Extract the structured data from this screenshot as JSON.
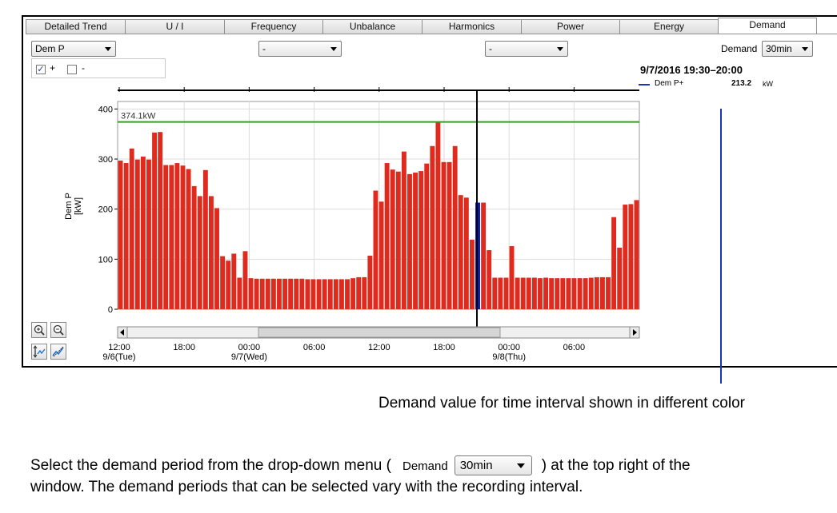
{
  "tabs": [
    "Detailed Trend",
    "U / I",
    "Frequency",
    "Unbalance",
    "Harmonics",
    "Power",
    "Energy",
    "Demand"
  ],
  "active_tab": "Demand",
  "selectors": {
    "param1": "Dem P",
    "param2": "-",
    "param3": "-",
    "demand_label": "Demand",
    "demand_period": "30min"
  },
  "checkboxes": [
    {
      "label": "+",
      "checked": true
    },
    {
      "label": "-",
      "checked": false
    }
  ],
  "readout": {
    "time": "9/7/2016 19:30–20:00",
    "series": "Dem P+",
    "value": "213.2",
    "unit": "kW"
  },
  "chart_data": {
    "type": "bar",
    "ylabel": "Dem P",
    "yunit": "[kW]",
    "ylim": [
      0,
      415
    ],
    "yticks": [
      "0",
      "100",
      "200",
      "300",
      "400"
    ],
    "xticks": [
      {
        "label": "12:00",
        "date": "9/6(Tue)"
      },
      {
        "label": "18:00",
        "date": ""
      },
      {
        "label": "00:00",
        "date": "9/7(Wed)"
      },
      {
        "label": "06:00",
        "date": ""
      },
      {
        "label": "12:00",
        "date": ""
      },
      {
        "label": "18:00",
        "date": ""
      },
      {
        "label": "00:00",
        "date": "9/8(Thu)"
      },
      {
        "label": "06:00",
        "date": ""
      }
    ],
    "threshold": {
      "value": 374.1,
      "label": "374.1kW",
      "color": "#3a9a2a"
    },
    "bar_color": "#e02a1e",
    "highlight_color": "#0a1aa0",
    "highlight_index": 63,
    "values": [
      297,
      292,
      321,
      299,
      305,
      299,
      353,
      354,
      288,
      288,
      292,
      287,
      280,
      246,
      226,
      278,
      226,
      202,
      106,
      97,
      111,
      63,
      116,
      62,
      61,
      61,
      61,
      61,
      61,
      61,
      61,
      61,
      61,
      60,
      60,
      60,
      60,
      60,
      60,
      60,
      60,
      62,
      64,
      64,
      107,
      237,
      215,
      292,
      279,
      275,
      315,
      270,
      273,
      276,
      291,
      326,
      374,
      294,
      294,
      326,
      228,
      223,
      139,
      213,
      213,
      118,
      63,
      63,
      63,
      126,
      63,
      63,
      63,
      63,
      62,
      63,
      62,
      62,
      62,
      62,
      62,
      62,
      62,
      63,
      64,
      64,
      64,
      184,
      123,
      209,
      210,
      218
    ]
  },
  "annotation": "Demand value for time interval shown in different color",
  "footer": {
    "part1": "Select the demand period from the drop-down menu (",
    "demand_word": "Demand",
    "select_value": "30min",
    "part2": ") at the top right of the",
    "line2": "window. The demand periods that can be selected vary with the recording interval."
  }
}
